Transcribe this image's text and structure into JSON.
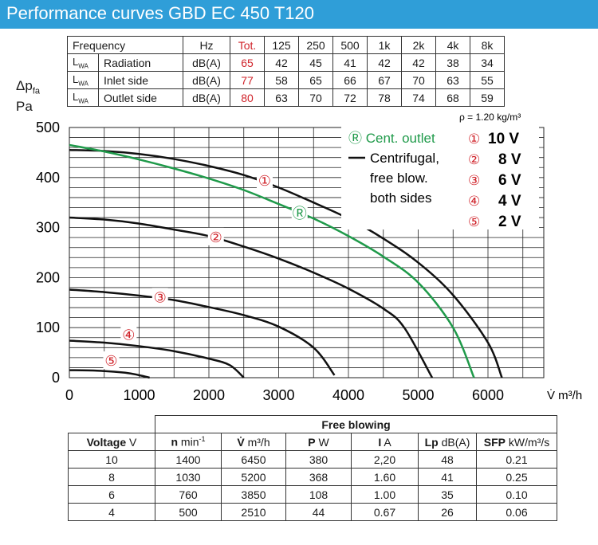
{
  "title": "Performance curves GBD EC 450 T120",
  "spec_table": {
    "headers": [
      "Frequency",
      "Hz",
      "Tot.",
      "125",
      "250",
      "500",
      "1k",
      "2k",
      "4k",
      "8k"
    ],
    "rows": [
      {
        "lwa": "L",
        "lwa_sub": "WA",
        "label": "Radiation",
        "unit": "dB(A)",
        "tot": "65",
        "values": [
          "42",
          "45",
          "41",
          "42",
          "42",
          "38",
          "34"
        ]
      },
      {
        "lwa": "L",
        "lwa_sub": "WA",
        "label": "Inlet side",
        "unit": "dB(A)",
        "tot": "77",
        "values": [
          "58",
          "65",
          "66",
          "67",
          "70",
          "63",
          "55"
        ]
      },
      {
        "lwa": "L",
        "lwa_sub": "WA",
        "label": "Outlet side",
        "unit": "dB(A)",
        "tot": "80",
        "values": [
          "63",
          "70",
          "72",
          "78",
          "74",
          "68",
          "59"
        ]
      }
    ]
  },
  "y_axis_label": {
    "symbol": "Δp",
    "sub": "fa",
    "unit": "Pa"
  },
  "density_note": "ρ = 1.20 kg/m³",
  "x_axis_label": "V̇  m³/h",
  "legend": {
    "cent_outlet": "Ⓡ Cent. outlet",
    "centrifugal_lines": [
      "Centrifugal,",
      "free blow.",
      "both sides"
    ],
    "voltages": [
      {
        "marker": "①",
        "label": "10 V"
      },
      {
        "marker": "②",
        "label": "8 V"
      },
      {
        "marker": "③",
        "label": "6 V"
      },
      {
        "marker": "④",
        "label": "4 V"
      },
      {
        "marker": "⑤",
        "label": "2 V"
      }
    ]
  },
  "colors": {
    "title_bar": "#2f9ed8",
    "green": "#1f9a4a",
    "red": "#d0232a",
    "grid": "#222222"
  },
  "chart_data": {
    "type": "line",
    "xlabel": "V̇ m³/h",
    "ylabel": "Δpfa Pa",
    "xlim": [
      0,
      6800
    ],
    "ylim": [
      0,
      500
    ],
    "xticks": [
      0,
      1000,
      2000,
      3000,
      4000,
      5000,
      6000
    ],
    "yticks": [
      0,
      100,
      200,
      300,
      400,
      500
    ],
    "grid": true,
    "series": [
      {
        "name": "①",
        "color": "#111111",
        "marker_at": [
          2800,
          395
        ],
        "points": [
          [
            0,
            455
          ],
          [
            500,
            453
          ],
          [
            1000,
            447
          ],
          [
            1500,
            437
          ],
          [
            2000,
            423
          ],
          [
            2500,
            405
          ],
          [
            3000,
            380
          ],
          [
            3500,
            350
          ],
          [
            4000,
            318
          ],
          [
            4500,
            278
          ],
          [
            5000,
            230
          ],
          [
            5500,
            165
          ],
          [
            6000,
            70
          ],
          [
            6200,
            0
          ]
        ]
      },
      {
        "name": "②",
        "color": "#111111",
        "marker_at": [
          2100,
          282
        ],
        "points": [
          [
            0,
            320
          ],
          [
            500,
            316
          ],
          [
            1000,
            308
          ],
          [
            1500,
            296
          ],
          [
            2000,
            283
          ],
          [
            2500,
            262
          ],
          [
            3000,
            238
          ],
          [
            3500,
            210
          ],
          [
            4000,
            178
          ],
          [
            4500,
            138
          ],
          [
            4800,
            100
          ],
          [
            5200,
            0
          ]
        ]
      },
      {
        "name": "③",
        "color": "#111111",
        "marker_at": [
          1300,
          162
        ],
        "points": [
          [
            0,
            176
          ],
          [
            500,
            171
          ],
          [
            1000,
            164
          ],
          [
            1500,
            155
          ],
          [
            2000,
            141
          ],
          [
            2500,
            125
          ],
          [
            3000,
            102
          ],
          [
            3500,
            60
          ],
          [
            3800,
            5
          ]
        ]
      },
      {
        "name": "④",
        "color": "#111111",
        "marker_at": [
          850,
          87
        ],
        "points": [
          [
            0,
            74
          ],
          [
            500,
            70
          ],
          [
            1000,
            63
          ],
          [
            1500,
            53
          ],
          [
            2000,
            38
          ],
          [
            2300,
            25
          ],
          [
            2500,
            0
          ]
        ]
      },
      {
        "name": "⑤",
        "color": "#111111",
        "marker_at": [
          600,
          35
        ],
        "points": [
          [
            0,
            15
          ],
          [
            400,
            14
          ],
          [
            800,
            10
          ],
          [
            1000,
            5
          ],
          [
            1150,
            0
          ]
        ]
      },
      {
        "name": "Ⓡ",
        "color": "#1f9a4a",
        "marker_at": [
          3300,
          330
        ],
        "points": [
          [
            0,
            465
          ],
          [
            500,
            452
          ],
          [
            1000,
            436
          ],
          [
            1500,
            418
          ],
          [
            2000,
            398
          ],
          [
            2500,
            375
          ],
          [
            3000,
            347
          ],
          [
            3500,
            318
          ],
          [
            4000,
            283
          ],
          [
            4500,
            242
          ],
          [
            5000,
            190
          ],
          [
            5500,
            100
          ],
          [
            5800,
            0
          ]
        ]
      }
    ]
  },
  "free_blowing": {
    "group_header": "Free blowing",
    "headers": [
      {
        "bold": "Voltage",
        "unit": " V"
      },
      {
        "bold": "n",
        "unit": " min",
        "sup": "-1"
      },
      {
        "bold": "V̇",
        "unit": " m³/h"
      },
      {
        "bold": "P",
        "unit": " W"
      },
      {
        "bold": "I",
        "unit": " A"
      },
      {
        "bold": "Lp",
        "unit": " dB(A)"
      },
      {
        "bold": "SFP",
        "unit": " kW/m³/s"
      }
    ],
    "rows": [
      [
        "10",
        "1400",
        "6450",
        "380",
        "2,20",
        "48",
        "0.21"
      ],
      [
        "8",
        "1030",
        "5200",
        "368",
        "1.60",
        "41",
        "0.25"
      ],
      [
        "6",
        "760",
        "3850",
        "108",
        "1.00",
        "35",
        "0.10"
      ],
      [
        "4",
        "500",
        "2510",
        "44",
        "0.67",
        "26",
        "0.06"
      ]
    ]
  }
}
